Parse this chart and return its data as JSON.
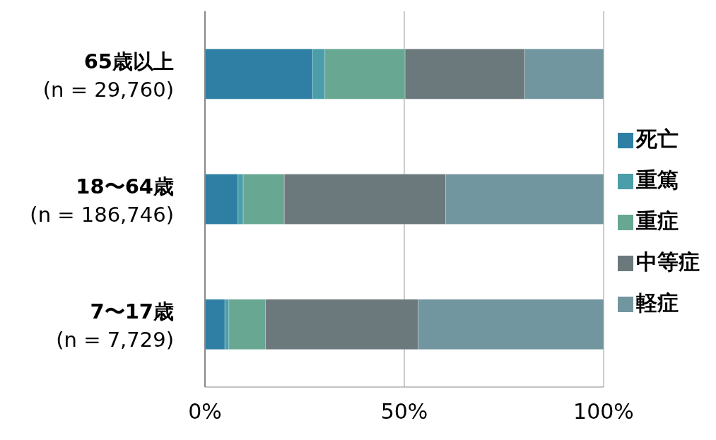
{
  "chart_data": {
    "type": "bar",
    "orientation": "horizontal",
    "stacked": true,
    "categories": [
      "65歳以上\n(n = 29,760)",
      "18〜64歳\n(n = 186,746)",
      "7〜17歳\n(n = 7,729)"
    ],
    "series": [
      {
        "name": "死亡",
        "color": "#2e7fa3",
        "values": [
          27.0,
          8.3,
          5.0
        ]
      },
      {
        "name": "重篤",
        "color": "#4b9ea9",
        "values": [
          3.1,
          1.3,
          1.0
        ]
      },
      {
        "name": "重症",
        "color": "#68a792",
        "values": [
          20.1,
          10.3,
          9.2
        ]
      },
      {
        "name": "中等症",
        "color": "#6b797c",
        "values": [
          30.0,
          40.5,
          38.3
        ]
      },
      {
        "name": "軽症",
        "color": "#7296a0",
        "values": [
          19.8,
          39.6,
          46.5
        ]
      }
    ],
    "xlim": [
      0,
      100
    ],
    "xticks": [
      {
        "value": 0,
        "label": "0%"
      },
      {
        "value": 50,
        "label": "50%"
      },
      {
        "value": 100,
        "label": "100%"
      }
    ],
    "grid": "x",
    "legend": "right"
  }
}
